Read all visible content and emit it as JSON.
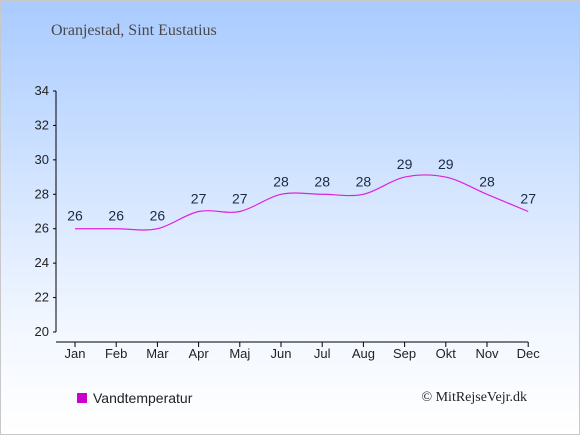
{
  "page": {
    "title": "Oranjestad, Sint Eustatius",
    "credit": "© MitRejseVejr.dk"
  },
  "colors": {
    "line": "#dd22dd",
    "legend_swatch": "#cc00cc",
    "axis": "#000000",
    "label": "#1a2a44"
  },
  "chart_data": {
    "type": "line",
    "title": "Oranjestad, Sint Eustatius",
    "xlabel": "",
    "ylabel": "",
    "categories": [
      "Jan",
      "Feb",
      "Mar",
      "Apr",
      "Maj",
      "Jun",
      "Jul",
      "Aug",
      "Sep",
      "Okt",
      "Nov",
      "Dec"
    ],
    "series": [
      {
        "name": "Vandtemperatur",
        "values": [
          26,
          26,
          26,
          27,
          27,
          28,
          28,
          28,
          29,
          29,
          28,
          27
        ]
      }
    ],
    "ylim": [
      20,
      34
    ],
    "yticks": [
      20,
      22,
      24,
      26,
      28,
      30,
      32,
      34
    ],
    "grid": false,
    "legend": "bottom-left"
  }
}
